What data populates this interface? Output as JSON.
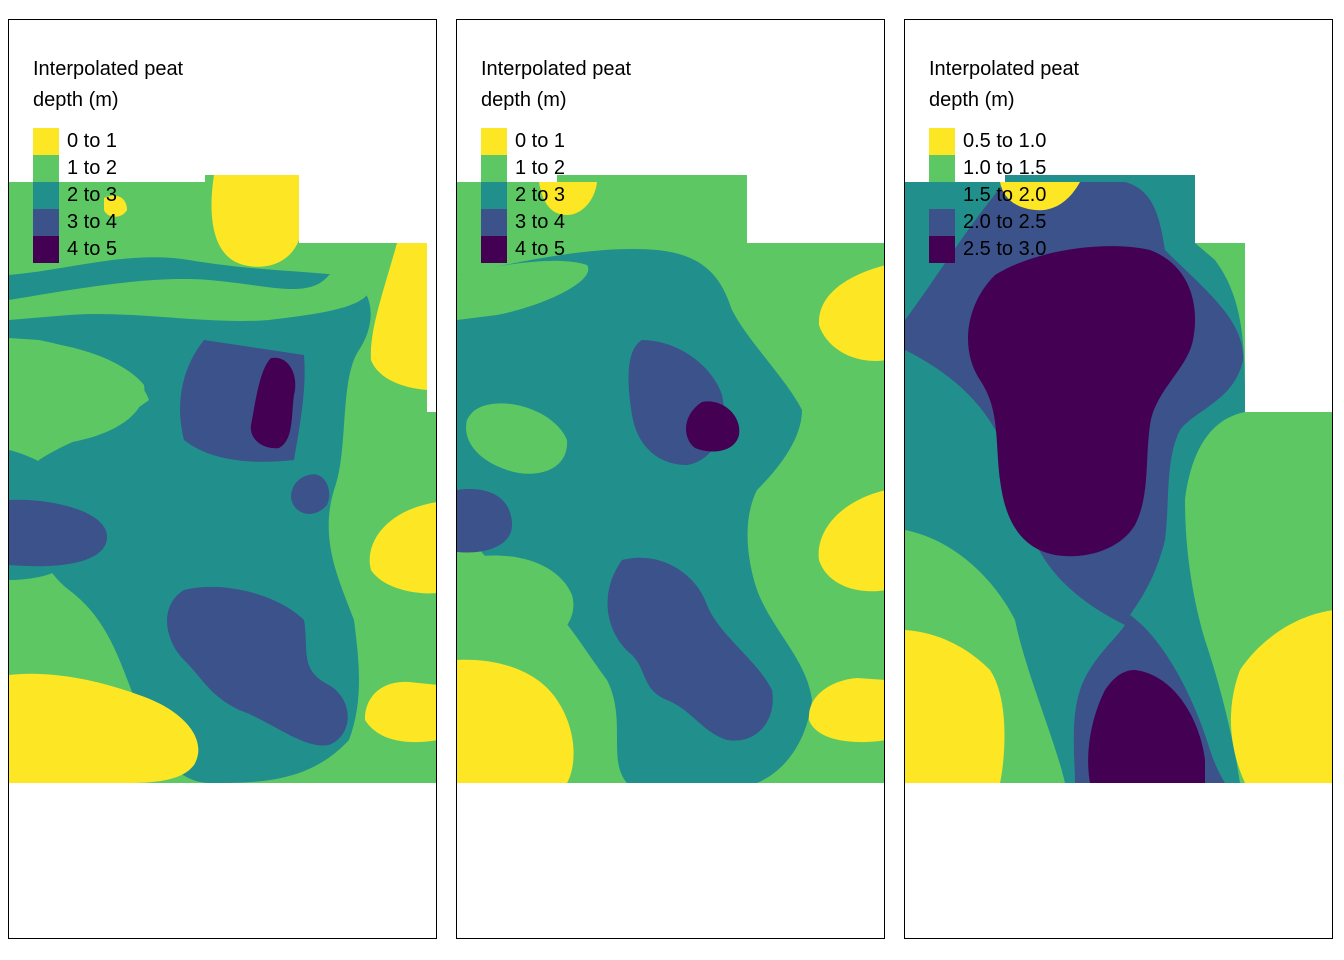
{
  "panels": [
    {
      "legend_title": "Interpolated peat depth (m)",
      "classes": [
        {
          "label": "0 to 1",
          "color": "#FDE725"
        },
        {
          "label": "1 to 2",
          "color": "#5DC863"
        },
        {
          "label": "2 to 3",
          "color": "#21908C"
        },
        {
          "label": "3 to 4",
          "color": "#3B528B"
        },
        {
          "label": "4 to 5",
          "color": "#440154"
        }
      ]
    },
    {
      "legend_title": "Interpolated peat depth (m)",
      "classes": [
        {
          "label": "0 to 1",
          "color": "#FDE725"
        },
        {
          "label": "1 to 2",
          "color": "#5DC863"
        },
        {
          "label": "2 to 3",
          "color": "#21908C"
        },
        {
          "label": "3 to 4",
          "color": "#3B528B"
        },
        {
          "label": "4 to 5",
          "color": "#440154"
        }
      ]
    },
    {
      "legend_title": "Interpolated peat depth (m)",
      "classes": [
        {
          "label": "0.5 to 1.0",
          "color": "#FDE725"
        },
        {
          "label": "1.0 to 1.5",
          "color": "#5DC863"
        },
        {
          "label": "1.5 to 2.0",
          "color": "#21908C"
        },
        {
          "label": "2.0 to 2.5",
          "color": "#3B528B"
        },
        {
          "label": "2.5 to 3.0",
          "color": "#440154"
        }
      ]
    }
  ]
}
